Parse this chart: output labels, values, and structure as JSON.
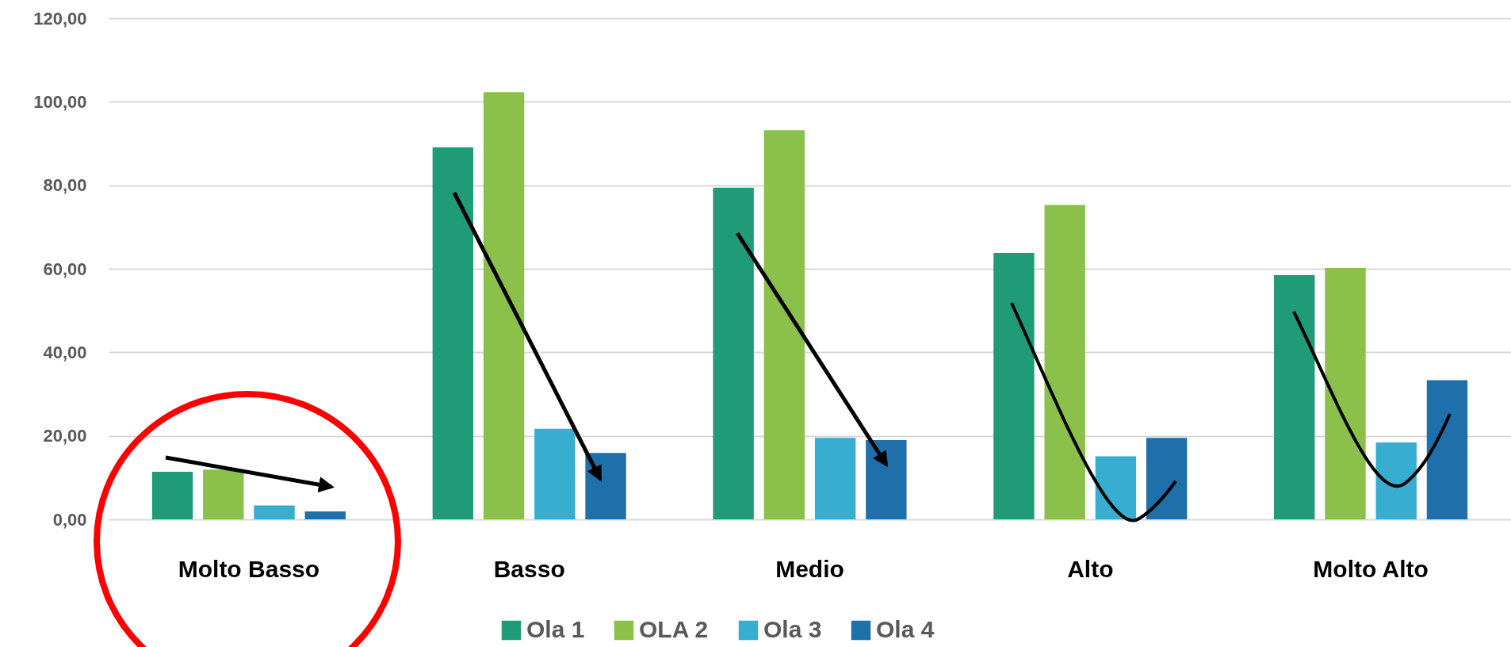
{
  "chart_data": {
    "type": "bar",
    "categories": [
      "Molto Basso",
      "Basso",
      "Medio",
      "Alto",
      "Molto Alto"
    ],
    "series": [
      {
        "name": "Ola 1",
        "color": "#1f9b78",
        "values": [
          11.4,
          89.1,
          79.4,
          63.8,
          58.5
        ]
      },
      {
        "name": "OLA 2",
        "color": "#8bc04a",
        "values": [
          11.9,
          102.3,
          93.2,
          75.3,
          60.2
        ]
      },
      {
        "name": "Ola 3",
        "color": "#37adcf",
        "values": [
          3.3,
          21.7,
          19.5,
          15.1,
          18.4
        ]
      },
      {
        "name": "Ola 4",
        "color": "#1f6fab",
        "values": [
          1.9,
          15.9,
          19.0,
          19.5,
          33.3
        ]
      }
    ],
    "ylim": [
      0,
      120
    ],
    "yticks": [
      {
        "value": 0,
        "label": "0,00"
      },
      {
        "value": 20,
        "label": "20,00"
      },
      {
        "value": 40,
        "label": "40,00"
      },
      {
        "value": 60,
        "label": "60,00"
      },
      {
        "value": 80,
        "label": "80,00"
      },
      {
        "value": 100,
        "label": "100,00"
      },
      {
        "value": 120,
        "label": "120,00"
      }
    ],
    "grid": "y",
    "legend": "bottom"
  }
}
